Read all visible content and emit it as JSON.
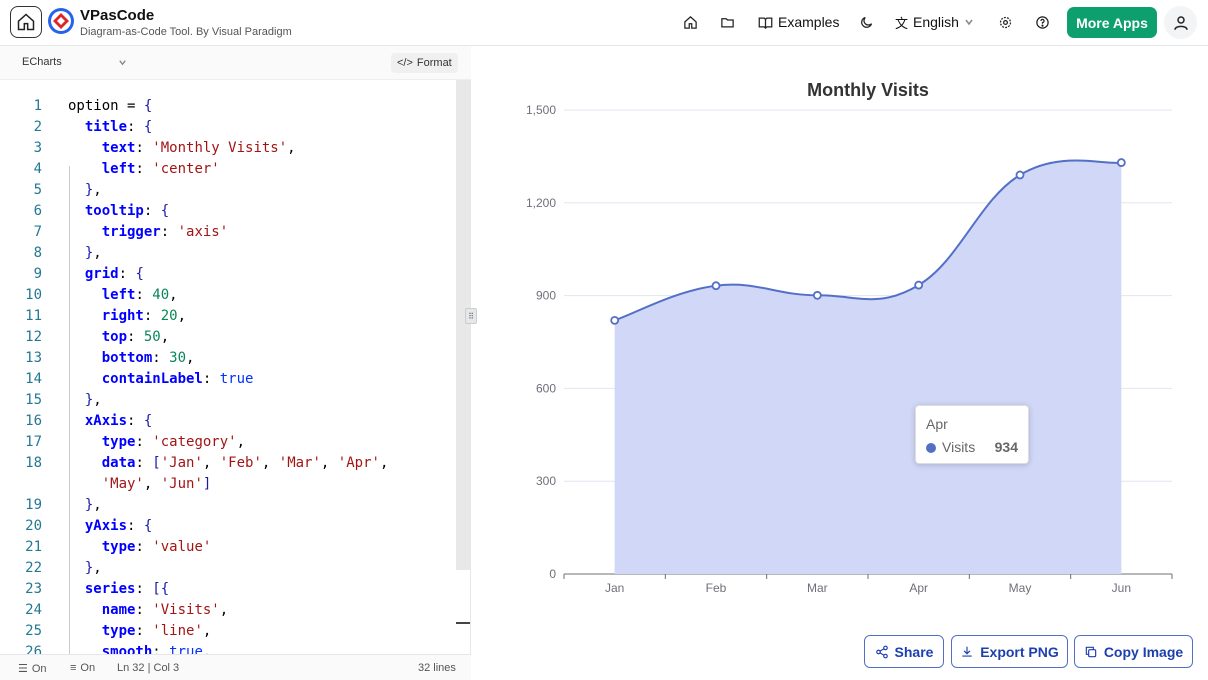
{
  "header": {
    "app_name": "VPasCode",
    "app_subtitle": "Diagram-as-Code Tool. By Visual Paradigm",
    "examples_label": "Examples",
    "language_label": "English",
    "more_apps_label": "More Apps"
  },
  "editor": {
    "language": "ECharts",
    "format_label": "Format",
    "status": {
      "toggle1": "On",
      "toggle2": "On",
      "cursor": "Ln 32 | Col 3",
      "lines": "32 lines"
    }
  },
  "code_lines": [
    {
      "n": "1",
      "t": "option = {"
    },
    {
      "n": "2",
      "t": "  title: {"
    },
    {
      "n": "3",
      "t": "    text: 'Monthly Visits',"
    },
    {
      "n": "4",
      "t": "    left: 'center'"
    },
    {
      "n": "5",
      "t": "  },"
    },
    {
      "n": "6",
      "t": "  tooltip: {"
    },
    {
      "n": "7",
      "t": "    trigger: 'axis'"
    },
    {
      "n": "8",
      "t": "  },"
    },
    {
      "n": "9",
      "t": "  grid: {"
    },
    {
      "n": "10",
      "t": "    left: 40,"
    },
    {
      "n": "11",
      "t": "    right: 20,"
    },
    {
      "n": "12",
      "t": "    top: 50,"
    },
    {
      "n": "13",
      "t": "    bottom: 30,"
    },
    {
      "n": "14",
      "t": "    containLabel: true"
    },
    {
      "n": "15",
      "t": "  },"
    },
    {
      "n": "16",
      "t": "  xAxis: {"
    },
    {
      "n": "17",
      "t": "    type: 'category',"
    },
    {
      "n": "18",
      "t": "    data: ['Jan', 'Feb', 'Mar', 'Apr',"
    },
    {
      "n": "",
      "t": "    'May', 'Jun']"
    },
    {
      "n": "19",
      "t": "  },"
    },
    {
      "n": "20",
      "t": "  yAxis: {"
    },
    {
      "n": "21",
      "t": "    type: 'value'"
    },
    {
      "n": "22",
      "t": "  },"
    },
    {
      "n": "23",
      "t": "  series: [{"
    },
    {
      "n": "24",
      "t": "    name: 'Visits',"
    },
    {
      "n": "25",
      "t": "    type: 'line',"
    },
    {
      "n": "26",
      "t": "    smooth: true,"
    }
  ],
  "chart_data": {
    "type": "area",
    "title": "Monthly Visits",
    "categories": [
      "Jan",
      "Feb",
      "Mar",
      "Apr",
      "May",
      "Jun"
    ],
    "series": [
      {
        "name": "Visits",
        "values": [
          820,
          932,
          901,
          934,
          1290,
          1330
        ],
        "color": "#5470c6",
        "area_color": "#d0d7f7"
      }
    ],
    "ylim": [
      0,
      1500
    ],
    "yticks": [
      0,
      300,
      600,
      900,
      1200,
      1500
    ],
    "ytick_labels": [
      "0",
      "300",
      "600",
      "900",
      "1,200",
      "1,500"
    ],
    "grid": true,
    "smooth": true
  },
  "tooltip": {
    "title": "Apr",
    "series_name": "Visits",
    "value": "934"
  },
  "actions": {
    "share": "Share",
    "export": "Export PNG",
    "copy": "Copy Image"
  }
}
